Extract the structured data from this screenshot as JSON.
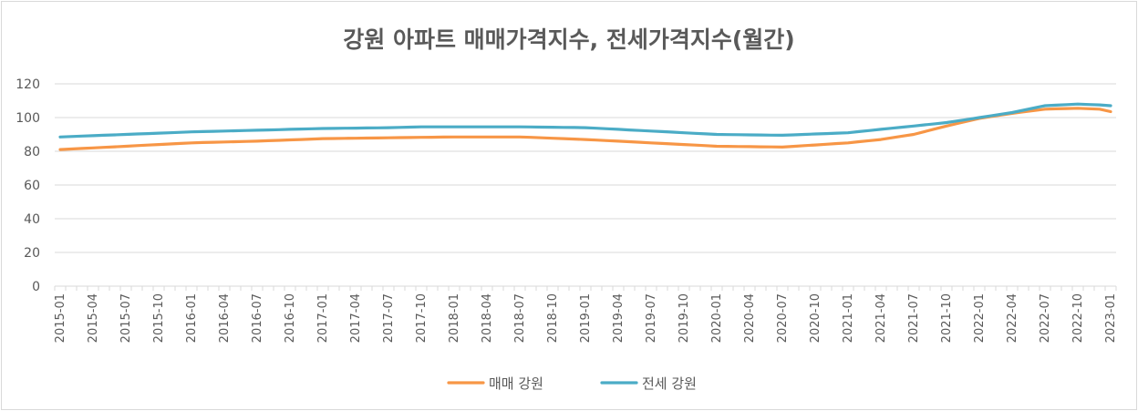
{
  "chart_data": {
    "type": "line",
    "title": "강원 아파트 매매가격지수, 전세가격지수(월간)",
    "ylim": [
      0,
      120
    ],
    "yticks": [
      0,
      20,
      40,
      60,
      80,
      100,
      120
    ],
    "grid": true,
    "legend_position": "bottom",
    "x_start": "2015-01",
    "x_end": "2023-01",
    "x_tick_labels": [
      "2015-01",
      "2015-04",
      "2015-07",
      "2015-10",
      "2016-01",
      "2016-04",
      "2016-07",
      "2016-10",
      "2017-01",
      "2017-04",
      "2017-07",
      "2017-10",
      "2018-01",
      "2018-04",
      "2018-07",
      "2018-10",
      "2019-01",
      "2019-04",
      "2019-07",
      "2019-10",
      "2020-01",
      "2020-04",
      "2020-07",
      "2020-10",
      "2021-01",
      "2021-04",
      "2021-07",
      "2021-10",
      "2022-01",
      "2022-04",
      "2022-07",
      "2022-10",
      "2023-01"
    ],
    "series": [
      {
        "name": "매매 강원",
        "color": "#f79646",
        "keypoints": [
          [
            "2015-01",
            81
          ],
          [
            "2015-07",
            83
          ],
          [
            "2016-01",
            85
          ],
          [
            "2016-07",
            86
          ],
          [
            "2017-01",
            87.5
          ],
          [
            "2017-07",
            88
          ],
          [
            "2018-01",
            88.5
          ],
          [
            "2018-07",
            88.5
          ],
          [
            "2019-01",
            87
          ],
          [
            "2019-07",
            85
          ],
          [
            "2020-01",
            83
          ],
          [
            "2020-07",
            82.5
          ],
          [
            "2021-01",
            85
          ],
          [
            "2021-04",
            87
          ],
          [
            "2021-07",
            90
          ],
          [
            "2021-10",
            95
          ],
          [
            "2022-01",
            99.5
          ],
          [
            "2022-04",
            102.5
          ],
          [
            "2022-07",
            105
          ],
          [
            "2022-10",
            105.5
          ],
          [
            "2022-12",
            105
          ],
          [
            "2023-01",
            103.5
          ]
        ]
      },
      {
        "name": "전세 강원",
        "color": "#4bacc6",
        "keypoints": [
          [
            "2015-01",
            88.5
          ],
          [
            "2015-07",
            90
          ],
          [
            "2016-01",
            91.5
          ],
          [
            "2016-07",
            92.5
          ],
          [
            "2017-01",
            93.5
          ],
          [
            "2017-07",
            94
          ],
          [
            "2017-10",
            94.5
          ],
          [
            "2018-07",
            94.5
          ],
          [
            "2019-01",
            94
          ],
          [
            "2019-07",
            92
          ],
          [
            "2020-01",
            90
          ],
          [
            "2020-07",
            89.5
          ],
          [
            "2021-01",
            91
          ],
          [
            "2021-04",
            93
          ],
          [
            "2021-07",
            95
          ],
          [
            "2021-10",
            97
          ],
          [
            "2022-01",
            100
          ],
          [
            "2022-04",
            103
          ],
          [
            "2022-07",
            107
          ],
          [
            "2022-10",
            108
          ],
          [
            "2022-12",
            107.5
          ],
          [
            "2023-01",
            107
          ]
        ]
      }
    ]
  }
}
